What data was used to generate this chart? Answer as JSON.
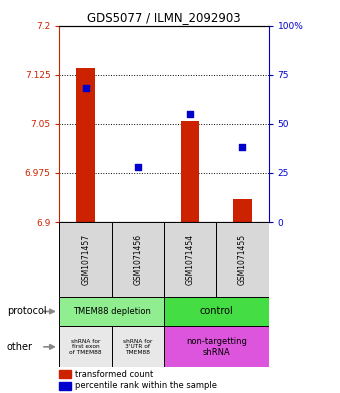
{
  "title": "GDS5077 / ILMN_2092903",
  "samples": [
    "GSM1071457",
    "GSM1071456",
    "GSM1071454",
    "GSM1071455"
  ],
  "red_values": [
    7.135,
    6.9,
    7.055,
    6.935
  ],
  "blue_values": [
    68,
    28,
    55,
    38
  ],
  "ylim_left": [
    6.9,
    7.2
  ],
  "ylim_right": [
    0,
    100
  ],
  "yticks_left": [
    6.9,
    6.975,
    7.05,
    7.125,
    7.2
  ],
  "yticks_right": [
    0,
    25,
    50,
    75,
    100
  ],
  "ytick_labels_left": [
    "6.9",
    "6.975",
    "7.05",
    "7.125",
    "7.2"
  ],
  "ytick_labels_right": [
    "0",
    "25",
    "50",
    "75",
    "100%"
  ],
  "bar_color": "#CC2200",
  "dot_color": "#0000CC",
  "bar_width": 0.35,
  "dot_size": 25,
  "left_axis_color": "#CC2200",
  "right_axis_color": "#0000CC",
  "sample_bg": "#D8D8D8",
  "proto_left_color": "#90EE90",
  "proto_right_color": "#44DD44",
  "other_left1_color": "#E8E8E8",
  "other_left2_color": "#E8E8E8",
  "other_right_color": "#DD55DD",
  "legend_red_label": "transformed count",
  "legend_blue_label": "percentile rank within the sample",
  "proto_left_text": "TMEM88 depletion",
  "proto_right_text": "control",
  "other_text1": "shRNA for\nfirst exon\nof TMEM88",
  "other_text2": "shRNA for\n3'UTR of\nTMEM88",
  "other_text3": "non-targetting\nshRNA",
  "protocol_label": "protocol",
  "other_label": "other"
}
